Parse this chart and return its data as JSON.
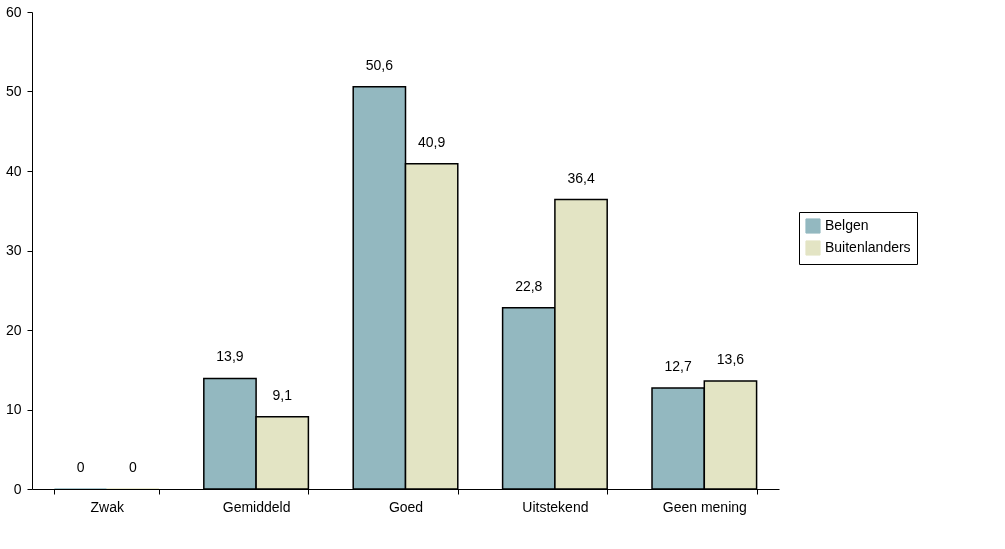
{
  "chart_data": {
    "type": "bar",
    "categories": [
      "Zwak",
      "Gemiddeld",
      "Goed",
      "Uitstekend",
      "Geen mening"
    ],
    "series": [
      {
        "name": "Belgen",
        "color": "#93b8c0",
        "values": [
          0,
          13.9,
          50.6,
          22.8,
          12.7
        ],
        "value_labels": [
          "0",
          "13,9",
          "50,6",
          "22,8",
          "12,7"
        ]
      },
      {
        "name": "Buitenlanders",
        "color": "#e3e4c4",
        "values": [
          0,
          9.1,
          40.9,
          36.4,
          13.6
        ],
        "value_labels": [
          "0",
          "9,1",
          "40,9",
          "36,4",
          "13,6"
        ]
      }
    ],
    "ylim": [
      0,
      60
    ],
    "yticks": [
      0,
      10,
      20,
      30,
      40,
      50,
      60
    ],
    "grid": false,
    "legend": "right"
  }
}
